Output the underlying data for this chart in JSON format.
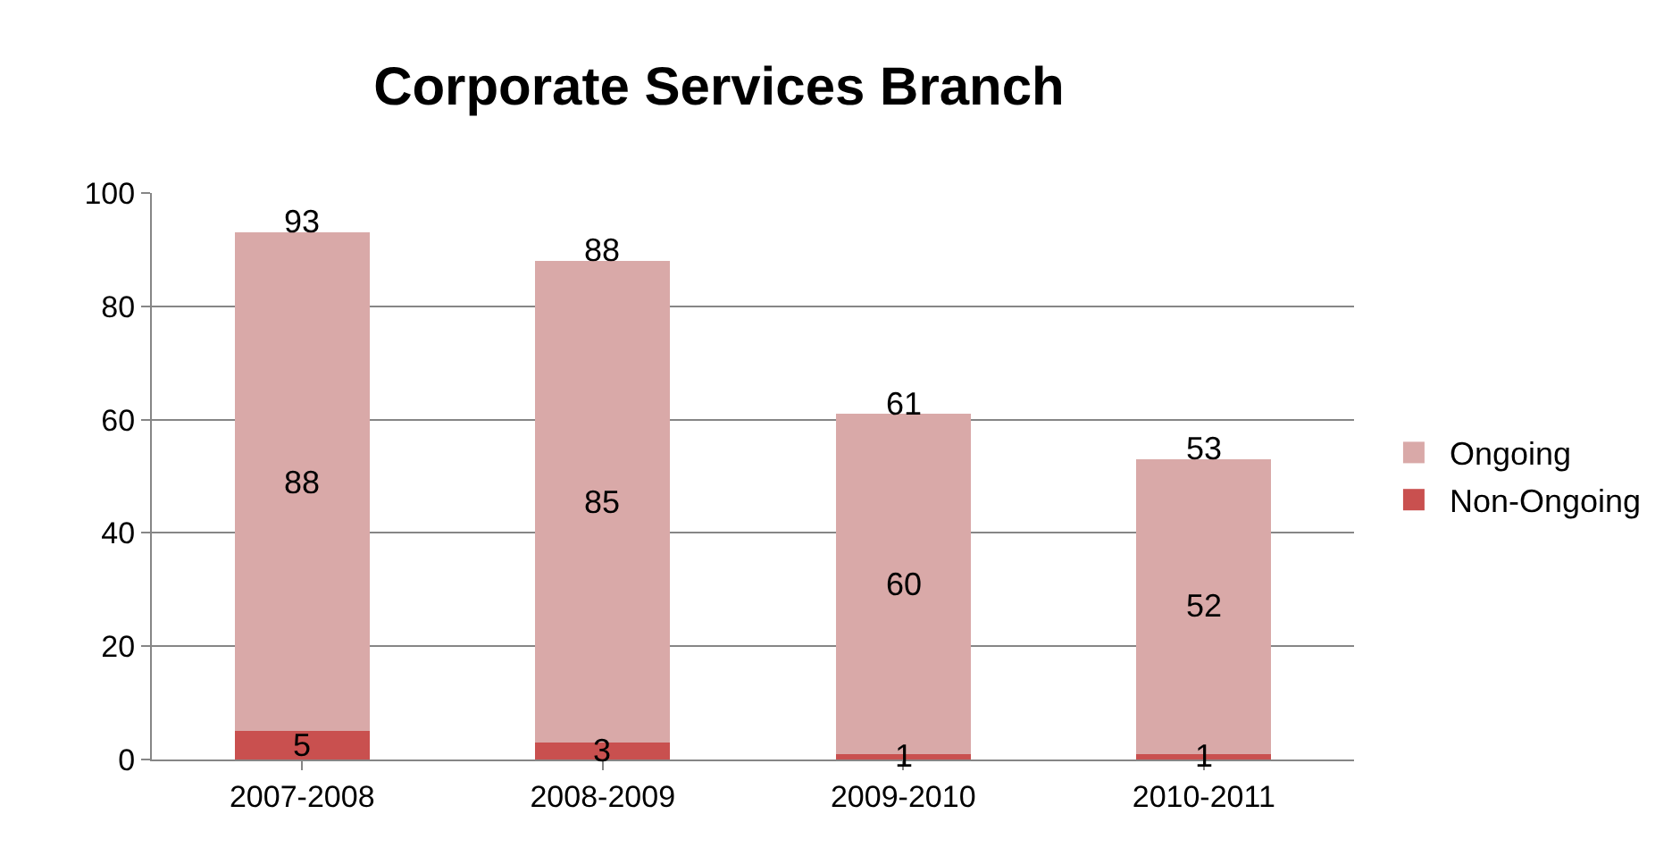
{
  "chart_data": {
    "type": "bar",
    "title": "Corporate Services Branch",
    "categories": [
      "2007-2008",
      "2008-2009",
      "2009-2010",
      "2010-2011"
    ],
    "series": [
      {
        "name": "Non-Ongoing",
        "color": "#c9504f",
        "values": [
          5,
          3,
          1,
          1
        ]
      },
      {
        "name": "Ongoing",
        "color": "#d9a9a8",
        "values": [
          88,
          85,
          60,
          52
        ]
      }
    ],
    "stacked": true,
    "data_labels": true,
    "totals": [
      "93",
      "88",
      "61",
      "53"
    ],
    "ylim": [
      0,
      100
    ],
    "yticks": [
      0,
      20,
      40,
      60,
      80,
      100
    ],
    "grid": "y",
    "legend": "right"
  }
}
